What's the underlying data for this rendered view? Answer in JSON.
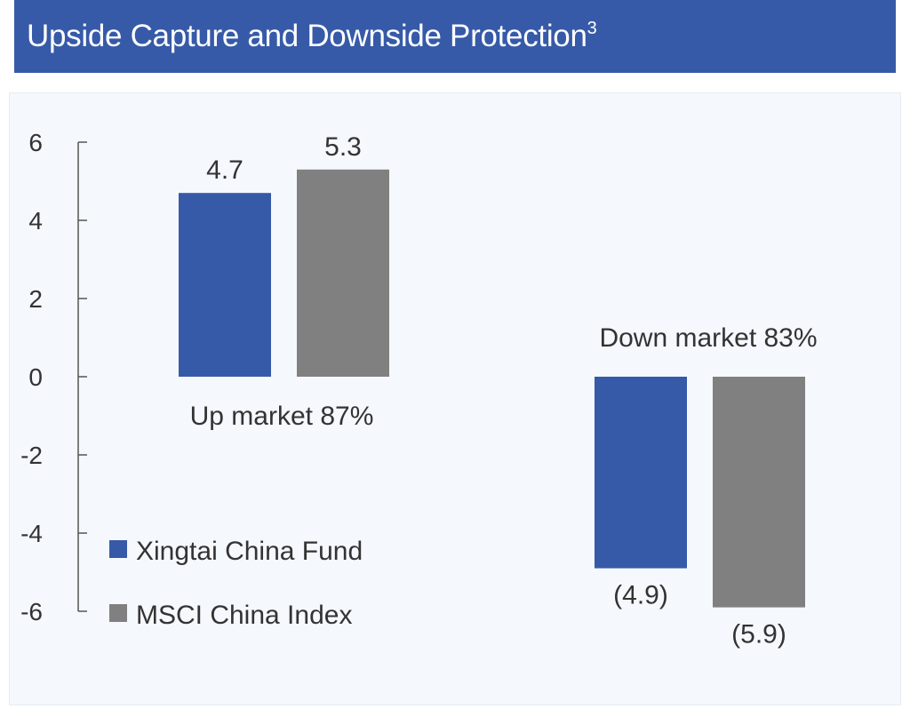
{
  "title": {
    "main": "Upside Capture and Downside Protection",
    "superscript": "3"
  },
  "colors": {
    "header_bg": "#365aa8",
    "fund": "#365aa8",
    "index": "#808080",
    "panel_bg": "#f5f8fd",
    "axis": "#555555"
  },
  "chart_data": {
    "type": "bar",
    "title": "Upside Capture and Downside Protection",
    "categories": [
      "Up market",
      "Down market"
    ],
    "group_labels": [
      "Up market 87%",
      "Down market 83%"
    ],
    "series": [
      {
        "name": "Xingtai China Fund",
        "values": [
          4.7,
          -4.9
        ],
        "labels": [
          "4.7",
          "(4.9)"
        ]
      },
      {
        "name": "MSCI China Index",
        "values": [
          5.3,
          -5.9
        ],
        "labels": [
          "5.3",
          "(5.9)"
        ]
      }
    ],
    "ylim": [
      -6,
      6
    ],
    "yticks": [
      6,
      4,
      2,
      0,
      -2,
      -4,
      -6
    ],
    "ytick_labels": [
      "6",
      "4",
      "2",
      "0",
      "-2",
      "-4",
      "-6"
    ],
    "legend": [
      "Xingtai China Fund",
      "MSCI China Index"
    ],
    "legend_position": "bottom-left",
    "grid": false
  }
}
